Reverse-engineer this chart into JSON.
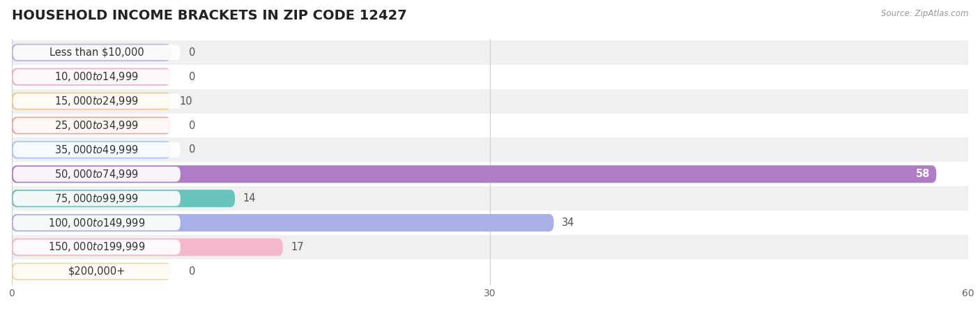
{
  "title": "HOUSEHOLD INCOME BRACKETS IN ZIP CODE 12427",
  "source": "Source: ZipAtlas.com",
  "categories": [
    "Less than $10,000",
    "$10,000 to $14,999",
    "$15,000 to $24,999",
    "$25,000 to $34,999",
    "$35,000 to $49,999",
    "$50,000 to $74,999",
    "$75,000 to $99,999",
    "$100,000 to $149,999",
    "$150,000 to $199,999",
    "$200,000+"
  ],
  "values": [
    0,
    0,
    10,
    0,
    0,
    58,
    14,
    34,
    17,
    0
  ],
  "bar_colors": [
    "#b8b8e0",
    "#f4afc8",
    "#f5c98a",
    "#f0a898",
    "#a8c4f0",
    "#b07cc6",
    "#68c4bc",
    "#a8b0e8",
    "#f4b8cc",
    "#f5d8a8"
  ],
  "row_bg_colors": [
    "#f0f0f0",
    "#ffffff"
  ],
  "xlim": [
    0,
    60
  ],
  "xticks": [
    0,
    30,
    60
  ],
  "background_color": "#ffffff",
  "title_fontsize": 14,
  "label_fontsize": 10.5,
  "value_fontsize": 10.5
}
